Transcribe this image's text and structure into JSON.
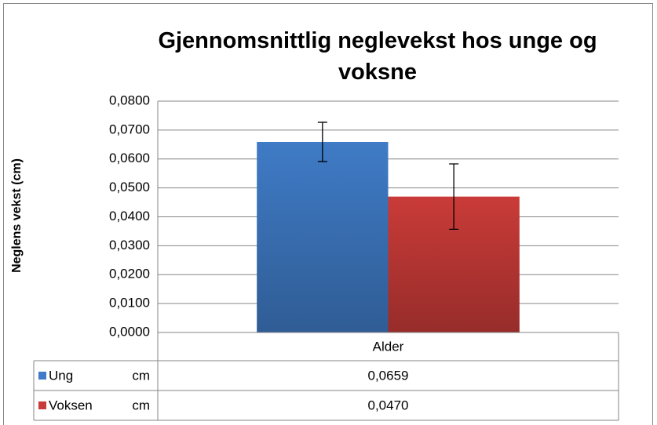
{
  "chart_data": {
    "type": "bar",
    "title": "Gjennomsnittlig neglevekst hos unge og voksne",
    "y_label": "Neglens vekst (cm)",
    "categories": [
      "Alder"
    ],
    "series": [
      {
        "name": "Ung",
        "unit": "cm",
        "color": "#3f7bc6",
        "values": [
          0.0659
        ],
        "value_labels": [
          "0,0659"
        ],
        "errors": [
          0.0068
        ]
      },
      {
        "name": "Voksen",
        "unit": "cm",
        "color": "#c93b38",
        "values": [
          0.047
        ],
        "value_labels": [
          "0,0470"
        ],
        "errors": [
          0.0113
        ]
      }
    ],
    "ylim": [
      0,
      0.08
    ],
    "yticks": [
      {
        "value": 0,
        "label": "0,0000"
      },
      {
        "value": 0.01,
        "label": "0,0100"
      },
      {
        "value": 0.02,
        "label": "0,0200"
      },
      {
        "value": 0.03,
        "label": "0,0300"
      },
      {
        "value": 0.04,
        "label": "0,0400"
      },
      {
        "value": 0.05,
        "label": "0,0500"
      },
      {
        "value": 0.06,
        "label": "0,0600"
      },
      {
        "value": 0.07,
        "label": "0,0700"
      },
      {
        "value": 0.08,
        "label": "0,0800"
      }
    ],
    "grid": true,
    "data_table": true
  }
}
